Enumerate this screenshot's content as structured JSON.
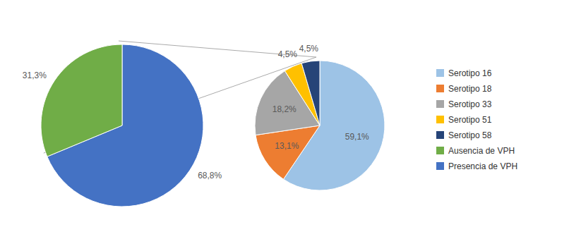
{
  "chart_data": [
    {
      "type": "pie",
      "categories": [
        "Presencia de VPH",
        "Ausencia de VPH"
      ],
      "values": [
        68.8,
        31.3
      ],
      "value_labels": [
        "68,8%",
        "31,3%"
      ],
      "colors": [
        "#4472c4",
        "#70ad47"
      ],
      "data_labels": true,
      "legend": "right"
    },
    {
      "type": "pie",
      "categories": [
        "Serotipo 16",
        "Serotipo 18",
        "Serotipo 33",
        "Serotipo 51",
        "Serotipo 58"
      ],
      "values": [
        59.1,
        13.1,
        18.2,
        4.5,
        4.5
      ],
      "value_labels": [
        "59,1%",
        "13,1%",
        "18,2%",
        "4,5%",
        "4,5%"
      ],
      "colors": [
        "#9dc3e6",
        "#ed7d31",
        "#a6a6a6",
        "#ffc000",
        "#264478"
      ],
      "data_labels": true,
      "legend": "right"
    }
  ]
}
